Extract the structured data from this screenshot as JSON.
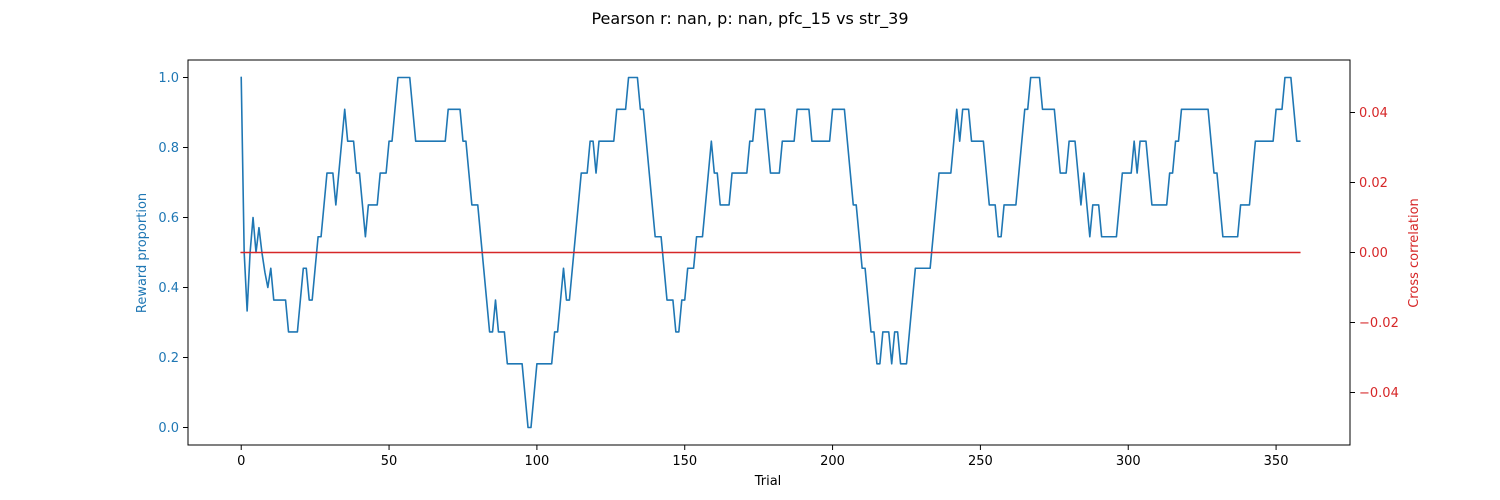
{
  "chart_data": {
    "type": "line",
    "title": "Pearson r: nan, p: nan, pfc_15 vs str_39",
    "xlabel": "Trial",
    "ylabel_left": "Reward proportion",
    "ylabel_right": "Cross correlation",
    "xlim": [
      -18,
      375
    ],
    "ylim_left": [
      -0.05,
      1.05
    ],
    "ylim_right": [
      -0.055,
      0.055
    ],
    "x_ticks": [
      0,
      50,
      100,
      150,
      200,
      250,
      300,
      350
    ],
    "y_ticks_left": [
      0.0,
      0.2,
      0.4,
      0.6,
      0.8,
      1.0
    ],
    "y_ticks_left_labels": [
      "0.0",
      "0.2",
      "0.4",
      "0.6",
      "0.8",
      "1.0"
    ],
    "y_ticks_right": [
      -0.04,
      -0.02,
      0.0,
      0.02,
      0.04
    ],
    "y_ticks_right_labels": [
      "−0.04",
      "−0.02",
      "0.00",
      "0.02",
      "0.04"
    ],
    "grid": false,
    "colors": {
      "left_axis": "#1f77b4",
      "right_axis": "#d62728",
      "frame": "#000000"
    },
    "series": [
      {
        "axis": "left",
        "color": "#1f77b4",
        "points": [
          [
            0,
            1.0
          ],
          [
            1,
            0.5
          ],
          [
            2,
            0.333
          ],
          [
            3,
            0.5
          ],
          [
            4,
            0.6
          ],
          [
            5,
            0.5
          ],
          [
            6,
            0.571
          ],
          [
            7,
            0.5
          ],
          [
            8,
            0.444
          ],
          [
            9,
            0.4
          ],
          [
            10,
            0.455
          ],
          [
            11,
            0.364
          ],
          [
            15,
            0.364
          ],
          [
            16,
            0.273
          ],
          [
            19,
            0.273
          ],
          [
            20,
            0.364
          ],
          [
            21,
            0.455
          ],
          [
            22,
            0.455
          ],
          [
            23,
            0.364
          ],
          [
            24,
            0.364
          ],
          [
            25,
            0.455
          ],
          [
            26,
            0.545
          ],
          [
            27,
            0.545
          ],
          [
            28,
            0.636
          ],
          [
            29,
            0.727
          ],
          [
            31,
            0.727
          ],
          [
            32,
            0.636
          ],
          [
            33,
            0.727
          ],
          [
            34,
            0.818
          ],
          [
            35,
            0.909
          ],
          [
            36,
            0.818
          ],
          [
            38,
            0.818
          ],
          [
            39,
            0.727
          ],
          [
            40,
            0.727
          ],
          [
            41,
            0.636
          ],
          [
            42,
            0.545
          ],
          [
            43,
            0.636
          ],
          [
            46,
            0.636
          ],
          [
            47,
            0.727
          ],
          [
            49,
            0.727
          ],
          [
            50,
            0.818
          ],
          [
            51,
            0.818
          ],
          [
            52,
            0.909
          ],
          [
            53,
            1.0
          ],
          [
            57,
            1.0
          ],
          [
            58,
            0.909
          ],
          [
            59,
            0.818
          ],
          [
            69,
            0.818
          ],
          [
            70,
            0.909
          ],
          [
            74,
            0.909
          ],
          [
            75,
            0.818
          ],
          [
            76,
            0.818
          ],
          [
            77,
            0.727
          ],
          [
            78,
            0.636
          ],
          [
            80,
            0.636
          ],
          [
            81,
            0.545
          ],
          [
            82,
            0.455
          ],
          [
            83,
            0.364
          ],
          [
            84,
            0.273
          ],
          [
            85,
            0.273
          ],
          [
            86,
            0.364
          ],
          [
            87,
            0.273
          ],
          [
            89,
            0.273
          ],
          [
            90,
            0.182
          ],
          [
            95,
            0.182
          ],
          [
            96,
            0.091
          ],
          [
            97,
            0.0
          ],
          [
            98,
            0.0
          ],
          [
            99,
            0.091
          ],
          [
            100,
            0.182
          ],
          [
            105,
            0.182
          ],
          [
            106,
            0.273
          ],
          [
            107,
            0.273
          ],
          [
            108,
            0.364
          ],
          [
            109,
            0.455
          ],
          [
            110,
            0.364
          ],
          [
            111,
            0.364
          ],
          [
            112,
            0.455
          ],
          [
            113,
            0.545
          ],
          [
            114,
            0.636
          ],
          [
            115,
            0.727
          ],
          [
            117,
            0.727
          ],
          [
            118,
            0.818
          ],
          [
            119,
            0.818
          ],
          [
            120,
            0.727
          ],
          [
            121,
            0.818
          ],
          [
            126,
            0.818
          ],
          [
            127,
            0.909
          ],
          [
            130,
            0.909
          ],
          [
            131,
            1.0
          ],
          [
            134,
            1.0
          ],
          [
            135,
            0.909
          ],
          [
            136,
            0.909
          ],
          [
            137,
            0.818
          ],
          [
            138,
            0.727
          ],
          [
            139,
            0.636
          ],
          [
            140,
            0.545
          ],
          [
            142,
            0.545
          ],
          [
            143,
            0.455
          ],
          [
            144,
            0.364
          ],
          [
            146,
            0.364
          ],
          [
            147,
            0.273
          ],
          [
            148,
            0.273
          ],
          [
            149,
            0.364
          ],
          [
            150,
            0.364
          ],
          [
            151,
            0.455
          ],
          [
            153,
            0.455
          ],
          [
            154,
            0.545
          ],
          [
            156,
            0.545
          ],
          [
            157,
            0.636
          ],
          [
            158,
            0.727
          ],
          [
            159,
            0.818
          ],
          [
            160,
            0.727
          ],
          [
            161,
            0.727
          ],
          [
            162,
            0.636
          ],
          [
            165,
            0.636
          ],
          [
            166,
            0.727
          ],
          [
            171,
            0.727
          ],
          [
            172,
            0.818
          ],
          [
            173,
            0.818
          ],
          [
            174,
            0.909
          ],
          [
            177,
            0.909
          ],
          [
            178,
            0.818
          ],
          [
            179,
            0.727
          ],
          [
            182,
            0.727
          ],
          [
            183,
            0.818
          ],
          [
            187,
            0.818
          ],
          [
            188,
            0.909
          ],
          [
            192,
            0.909
          ],
          [
            193,
            0.818
          ],
          [
            199,
            0.818
          ],
          [
            200,
            0.909
          ],
          [
            204,
            0.909
          ],
          [
            205,
            0.818
          ],
          [
            206,
            0.727
          ],
          [
            207,
            0.636
          ],
          [
            208,
            0.636
          ],
          [
            209,
            0.545
          ],
          [
            210,
            0.455
          ],
          [
            211,
            0.455
          ],
          [
            212,
            0.364
          ],
          [
            213,
            0.273
          ],
          [
            214,
            0.273
          ],
          [
            215,
            0.182
          ],
          [
            216,
            0.182
          ],
          [
            217,
            0.273
          ],
          [
            219,
            0.273
          ],
          [
            220,
            0.182
          ],
          [
            221,
            0.273
          ],
          [
            222,
            0.273
          ],
          [
            223,
            0.182
          ],
          [
            225,
            0.182
          ],
          [
            226,
            0.273
          ],
          [
            227,
            0.364
          ],
          [
            228,
            0.455
          ],
          [
            233,
            0.455
          ],
          [
            234,
            0.545
          ],
          [
            235,
            0.636
          ],
          [
            236,
            0.727
          ],
          [
            240,
            0.727
          ],
          [
            241,
            0.818
          ],
          [
            242,
            0.909
          ],
          [
            243,
            0.818
          ],
          [
            244,
            0.909
          ],
          [
            246,
            0.909
          ],
          [
            247,
            0.818
          ],
          [
            251,
            0.818
          ],
          [
            252,
            0.727
          ],
          [
            253,
            0.636
          ],
          [
            255,
            0.636
          ],
          [
            256,
            0.545
          ],
          [
            257,
            0.545
          ],
          [
            258,
            0.636
          ],
          [
            262,
            0.636
          ],
          [
            263,
            0.727
          ],
          [
            264,
            0.818
          ],
          [
            265,
            0.909
          ],
          [
            266,
            0.909
          ],
          [
            267,
            1.0
          ],
          [
            270,
            1.0
          ],
          [
            271,
            0.909
          ],
          [
            275,
            0.909
          ],
          [
            276,
            0.818
          ],
          [
            277,
            0.727
          ],
          [
            279,
            0.727
          ],
          [
            280,
            0.818
          ],
          [
            282,
            0.818
          ],
          [
            283,
            0.727
          ],
          [
            284,
            0.636
          ],
          [
            285,
            0.727
          ],
          [
            286,
            0.636
          ],
          [
            287,
            0.545
          ],
          [
            288,
            0.636
          ],
          [
            290,
            0.636
          ],
          [
            291,
            0.545
          ],
          [
            296,
            0.545
          ],
          [
            297,
            0.636
          ],
          [
            298,
            0.727
          ],
          [
            301,
            0.727
          ],
          [
            302,
            0.818
          ],
          [
            303,
            0.727
          ],
          [
            304,
            0.818
          ],
          [
            306,
            0.818
          ],
          [
            307,
            0.727
          ],
          [
            308,
            0.636
          ],
          [
            313,
            0.636
          ],
          [
            314,
            0.727
          ],
          [
            315,
            0.727
          ],
          [
            316,
            0.818
          ],
          [
            317,
            0.818
          ],
          [
            318,
            0.909
          ],
          [
            327,
            0.909
          ],
          [
            328,
            0.818
          ],
          [
            329,
            0.727
          ],
          [
            330,
            0.727
          ],
          [
            331,
            0.636
          ],
          [
            332,
            0.545
          ],
          [
            337,
            0.545
          ],
          [
            338,
            0.636
          ],
          [
            341,
            0.636
          ],
          [
            342,
            0.727
          ],
          [
            343,
            0.818
          ],
          [
            349,
            0.818
          ],
          [
            350,
            0.909
          ],
          [
            352,
            0.909
          ],
          [
            353,
            1.0
          ],
          [
            355,
            1.0
          ],
          [
            356,
            0.909
          ],
          [
            357,
            0.818
          ],
          [
            358,
            0.818
          ]
        ]
      },
      {
        "axis": "right",
        "color": "#d62728",
        "points": [
          [
            0,
            0.0
          ],
          [
            358,
            0.0
          ]
        ]
      }
    ]
  }
}
